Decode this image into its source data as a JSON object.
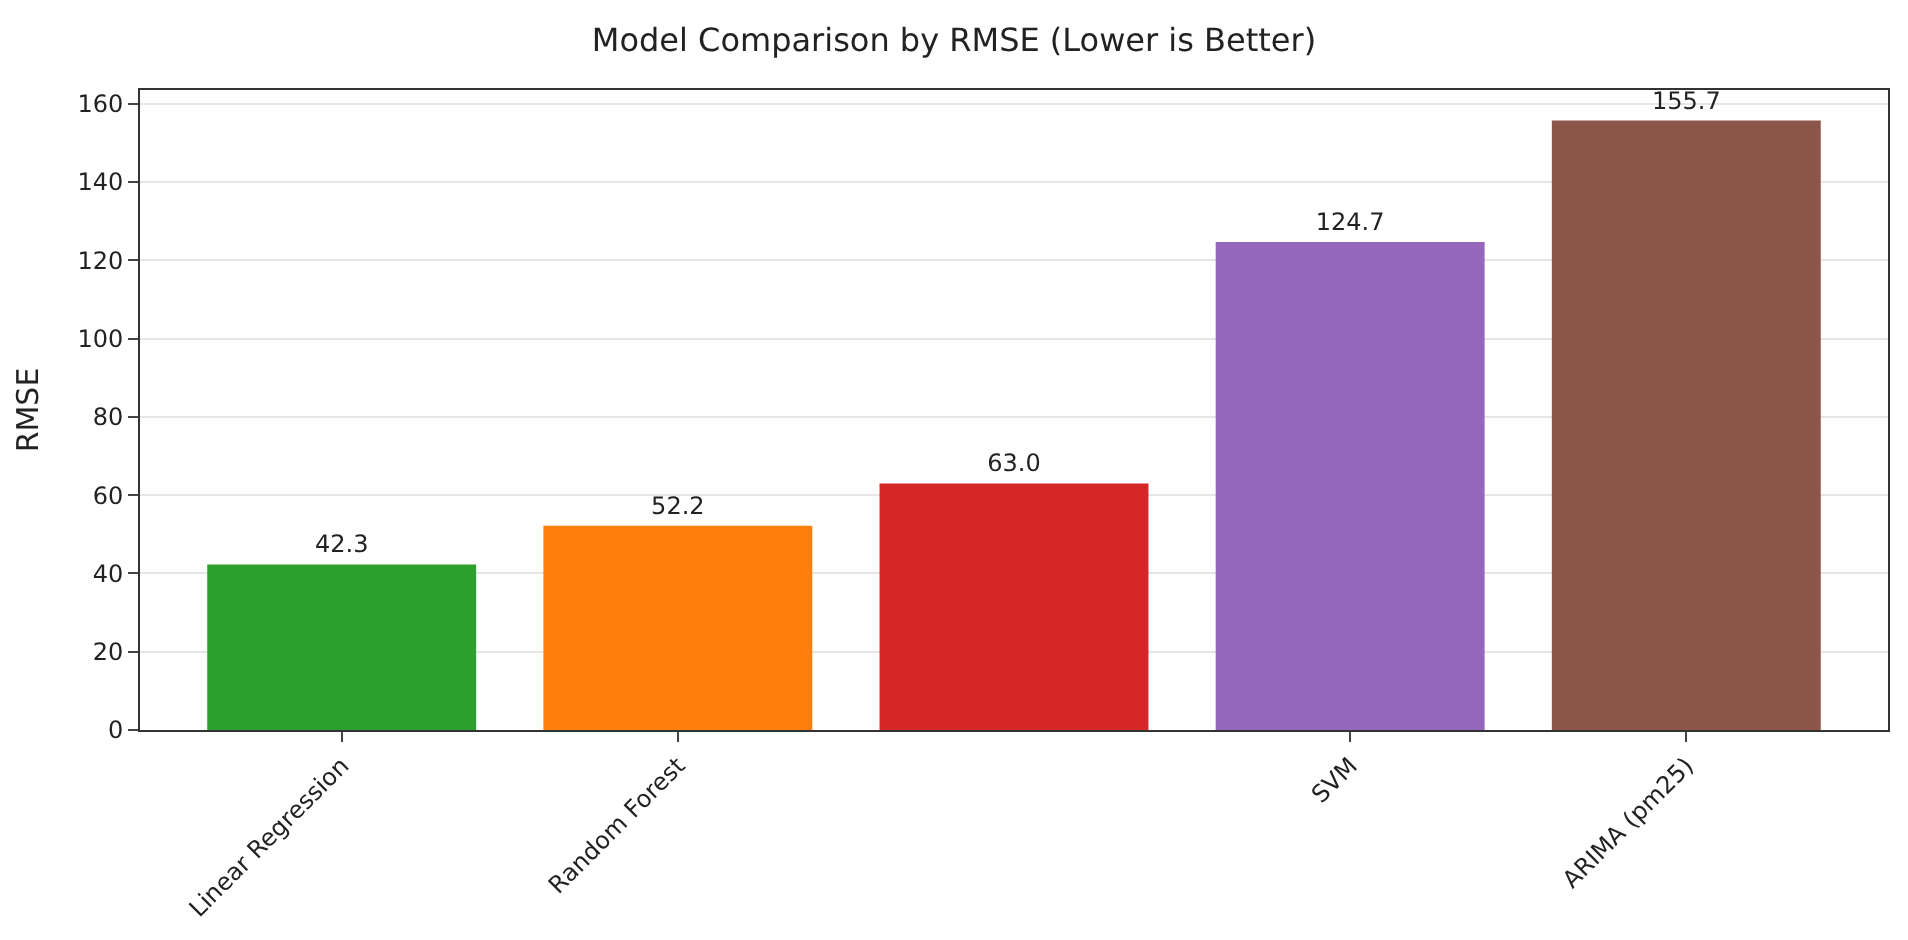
{
  "chart_data": {
    "type": "bar",
    "title": "Model Comparison by RMSE (Lower is Better)",
    "ylabel": "RMSE",
    "categories": [
      "Linear Regression",
      "Random Forest",
      null,
      "SVM",
      "ARIMA (pm25)"
    ],
    "values": [
      42.3,
      52.2,
      63.0,
      124.7,
      155.7
    ],
    "value_labels": [
      "42.3",
      "52.2",
      "63.0",
      "124.7",
      "155.7"
    ],
    "colors": [
      "#2ca02c",
      "#ff7f0e",
      "#d62728",
      "#9467bd",
      "#8c564b"
    ],
    "ylim": [
      0,
      163.5
    ],
    "yticks": [
      0,
      20,
      40,
      60,
      80,
      100,
      120,
      140,
      160
    ],
    "grid": "y",
    "legend": false
  }
}
